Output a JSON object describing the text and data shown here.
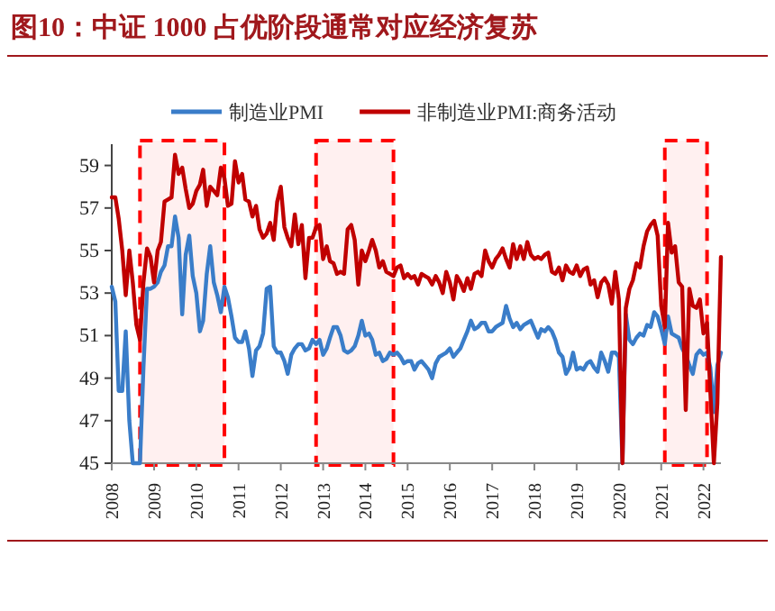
{
  "chart_data": {
    "type": "line",
    "title": "图10：中证 1000 占优阶段通常对应经济复苏",
    "x": [
      "2008-01",
      "2008-02",
      "2008-03",
      "2008-04",
      "2008-05",
      "2008-06",
      "2008-07",
      "2008-08",
      "2008-09",
      "2008-10",
      "2008-11",
      "2008-12",
      "2009-01",
      "2009-02",
      "2009-03",
      "2009-04",
      "2009-05",
      "2009-06",
      "2009-07",
      "2009-08",
      "2009-09",
      "2009-10",
      "2009-11",
      "2009-12",
      "2010-01",
      "2010-02",
      "2010-03",
      "2010-04",
      "2010-05",
      "2010-06",
      "2010-07",
      "2010-08",
      "2010-09",
      "2010-10",
      "2010-11",
      "2010-12",
      "2011-01",
      "2011-02",
      "2011-03",
      "2011-04",
      "2011-05",
      "2011-06",
      "2011-07",
      "2011-08",
      "2011-09",
      "2011-10",
      "2011-11",
      "2011-12",
      "2012-01",
      "2012-02",
      "2012-03",
      "2012-04",
      "2012-05",
      "2012-06",
      "2012-07",
      "2012-08",
      "2012-09",
      "2012-10",
      "2012-11",
      "2012-12",
      "2013-01",
      "2013-02",
      "2013-03",
      "2013-04",
      "2013-05",
      "2013-06",
      "2013-07",
      "2013-08",
      "2013-09",
      "2013-10",
      "2013-11",
      "2013-12",
      "2014-01",
      "2014-02",
      "2014-03",
      "2014-04",
      "2014-05",
      "2014-06",
      "2014-07",
      "2014-08",
      "2014-09",
      "2014-10",
      "2014-11",
      "2014-12",
      "2015-01",
      "2015-02",
      "2015-03",
      "2015-04",
      "2015-05",
      "2015-06",
      "2015-07",
      "2015-08",
      "2015-09",
      "2015-10",
      "2015-11",
      "2015-12",
      "2016-01",
      "2016-02",
      "2016-03",
      "2016-04",
      "2016-05",
      "2016-06",
      "2016-07",
      "2016-08",
      "2016-09",
      "2016-10",
      "2016-11",
      "2016-12",
      "2017-01",
      "2017-02",
      "2017-03",
      "2017-04",
      "2017-05",
      "2017-06",
      "2017-07",
      "2017-08",
      "2017-09",
      "2017-10",
      "2017-11",
      "2017-12",
      "2018-01",
      "2018-02",
      "2018-03",
      "2018-04",
      "2018-05",
      "2018-06",
      "2018-07",
      "2018-08",
      "2018-09",
      "2018-10",
      "2018-11",
      "2018-12",
      "2019-01",
      "2019-02",
      "2019-03",
      "2019-04",
      "2019-05",
      "2019-06",
      "2019-07",
      "2019-08",
      "2019-09",
      "2019-10",
      "2019-11",
      "2019-12",
      "2020-01",
      "2020-02",
      "2020-03",
      "2020-04",
      "2020-05",
      "2020-06",
      "2020-07",
      "2020-08",
      "2020-09",
      "2020-10",
      "2020-11",
      "2020-12",
      "2021-01",
      "2021-02",
      "2021-03",
      "2021-04",
      "2021-05",
      "2021-06",
      "2021-07",
      "2021-08",
      "2021-09",
      "2021-10",
      "2021-11",
      "2021-12",
      "2022-01",
      "2022-02",
      "2022-03",
      "2022-04",
      "2022-05",
      "2022-06"
    ],
    "series": [
      {
        "name": "制造业PMI",
        "color": "#3a7dc9",
        "values": [
          53.3,
          52.6,
          48.4,
          48.4,
          51.2,
          47.0,
          45,
          45,
          45,
          49.5,
          53.2,
          53.2,
          53.3,
          53.5,
          54.0,
          54.3,
          55.2,
          55.2,
          56.6,
          55.6,
          52.0,
          54.8,
          55.7,
          53.8,
          53.0,
          51.2,
          51.7,
          53.9,
          55.2,
          53.5,
          52.9,
          52.1,
          53.3,
          52.8,
          51.9,
          50.9,
          50.7,
          50.7,
          51.2,
          50.4,
          49.1,
          50.3,
          50.5,
          51.1,
          53.2,
          53.3,
          50.5,
          50.2,
          50.2,
          49.8,
          49.2,
          50.1,
          50.4,
          50.6,
          50.6,
          50.3,
          50.4,
          50.8,
          50.6,
          50.8,
          50.1,
          50.4,
          50.9,
          51.4,
          51.4,
          51.0,
          50.3,
          50.2,
          50.3,
          50.5,
          51.0,
          51.7,
          51.0,
          51.1,
          50.8,
          50.1,
          50.2,
          49.8,
          49.9,
          50.2,
          50.1,
          50.2,
          50.0,
          49.7,
          49.8,
          49.8,
          49.4,
          49.7,
          49.8,
          49.6,
          49.4,
          49.0,
          49.7,
          50.0,
          50.1,
          50.2,
          50.4,
          50.0,
          50.2,
          50.4,
          50.8,
          51.2,
          51.7,
          51.3,
          51.4,
          51.6,
          51.6,
          51.2,
          51.2,
          51.4,
          51.5,
          51.6,
          52.4,
          51.8,
          51.4,
          51.6,
          51.3,
          51.5,
          51.6,
          51.7,
          51.3,
          50.9,
          51.3,
          51.2,
          51.4,
          51.2,
          50.8,
          50.2,
          50.0,
          49.2,
          49.5,
          50.2,
          49.4,
          49.5,
          49.4,
          49.7,
          49.8,
          49.5,
          49.3,
          50.2,
          49.8,
          49.3,
          50.2,
          50.2,
          50.0,
          45,
          52.0,
          50.8,
          50.6,
          50.9,
          51.1,
          51.0,
          51.5,
          51.4,
          52.1,
          51.9,
          51.3,
          50.6,
          51.9,
          51.1,
          51.0,
          50.9,
          50.4,
          50.1,
          49.6,
          49.2,
          50.1,
          50.3,
          50.1,
          50.2,
          49.5,
          47.4,
          49.6,
          50.2
        ]
      },
      {
        "name": "非制造业PMI:商务活动",
        "color": "#c00000",
        "values": [
          57.5,
          57.5,
          56.5,
          55.0,
          52.9,
          55.0,
          53.5,
          51.5,
          50.8,
          53.5,
          55.1,
          54.7,
          53.5,
          55.0,
          55.4,
          57.3,
          57.4,
          57.5,
          59.5,
          58.6,
          58.9,
          57.9,
          57.0,
          57.2,
          57.8,
          58.1,
          58.8,
          57.1,
          58.0,
          57.8,
          57.6,
          58.9,
          58.4,
          57.1,
          57.2,
          59.2,
          58.2,
          58.6,
          57.4,
          57.3,
          56.6,
          57.1,
          56.0,
          55.6,
          55.8,
          56.3,
          55.5,
          57.3,
          58.0,
          56.1,
          55.6,
          55.2,
          56.7,
          55.3,
          56.2,
          53.7,
          55.6,
          55.6,
          56.1,
          56.2,
          54.6,
          55.2,
          54.5,
          54.4,
          53.9,
          54.0,
          53.9,
          56.0,
          56.2,
          55.5,
          53.4,
          55.0,
          54.5,
          55.0,
          55.5,
          55.0,
          54.2,
          54.5,
          54.0,
          53.9,
          53.8,
          54.2,
          54.3,
          53.7,
          53.9,
          53.7,
          53.8,
          53.4,
          53.9,
          53.8,
          53.7,
          53.4,
          53.8,
          53.5,
          53.0,
          54.0,
          53.5,
          52.7,
          53.8,
          53.5,
          53.1,
          53.7,
          53.2,
          53.9,
          54.0,
          53.8,
          55.0,
          54.5,
          54.2,
          54.6,
          54.8,
          55.1,
          54.6,
          54.2,
          55.3,
          54.6,
          55.2,
          54.6,
          55.4,
          54.8,
          54.6,
          54.7,
          54.6,
          54.8,
          54.9,
          54.0,
          53.9,
          54.2,
          53.6,
          54.3,
          54.0,
          53.9,
          54.3,
          53.8,
          54.1,
          54.2,
          53.4,
          53.6,
          52.8,
          53.5,
          53.7,
          53.4,
          52.5,
          54.0,
          52.7,
          45,
          52.3,
          53.2,
          53.6,
          54.4,
          54.2,
          55.2,
          55.9,
          56.2,
          56.4,
          55.7,
          52.4,
          51.4,
          56.3,
          54.9,
          55.2,
          53.5,
          53.3,
          47.5,
          53.2,
          52.4,
          52.3,
          52.7,
          51.1,
          51.6,
          48.4,
          45,
          47.8,
          54.7
        ]
      }
    ],
    "xlim": [
      "2008-01",
      "2022-06"
    ],
    "xticks": [
      "2008",
      "2009",
      "2010",
      "2011",
      "2012",
      "2013",
      "2014",
      "2015",
      "2016",
      "2017",
      "2018",
      "2019",
      "2020",
      "2021",
      "2022"
    ],
    "ylim": [
      45,
      60
    ],
    "yticks": [
      45,
      47,
      49,
      51,
      53,
      55,
      57,
      59
    ],
    "bands": [
      {
        "axis": "x",
        "from": "2008-09",
        "to": "2010-09",
        "color": "#ff0000"
      },
      {
        "axis": "x",
        "from": "2012-11",
        "to": "2014-09",
        "color": "#ff0000"
      },
      {
        "axis": "x",
        "from": "2021-02",
        "to": "2022-02",
        "color": "#ff0000"
      }
    ],
    "legend": "top",
    "grid": false,
    "marker": "none",
    "line_style": "solid"
  }
}
